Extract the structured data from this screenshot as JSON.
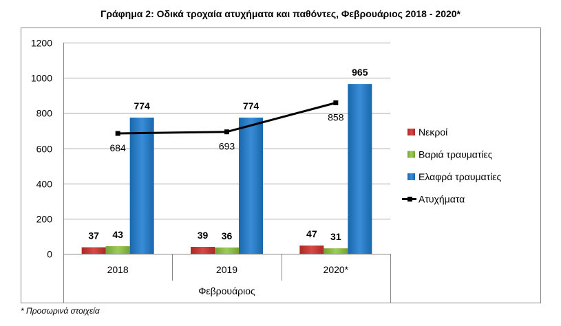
{
  "chart_data": {
    "type": "bar",
    "title": "Γράφημα 2: Οδικά τροχαία ατυχήματα και παθόντες, Φεβρουάριος 2018 - 2020*",
    "categories": [
      "2018",
      "2019",
      "2020*"
    ],
    "xlabel": "Φεβρουάριος",
    "ylim": [
      0,
      1200
    ],
    "yticks": [
      0,
      200,
      400,
      600,
      800,
      1000,
      1200
    ],
    "grid": true,
    "legend_position": "right",
    "series": [
      {
        "name": "Νεκροί",
        "type": "bar",
        "color": "#d0312d",
        "values": [
          37,
          39,
          47
        ]
      },
      {
        "name": "Βαριά τραυματίες",
        "type": "bar",
        "color": "#8ec641",
        "values": [
          43,
          36,
          31
        ]
      },
      {
        "name": "Ελαφρά τραυματίες",
        "type": "bar",
        "color": "#1e7ed2",
        "values": [
          774,
          774,
          965
        ]
      },
      {
        "name": "Ατυχήματα",
        "type": "line",
        "color": "#000000",
        "values": [
          684,
          693,
          858
        ]
      }
    ]
  },
  "footnote": "* Προσωρινά στοιχεία"
}
